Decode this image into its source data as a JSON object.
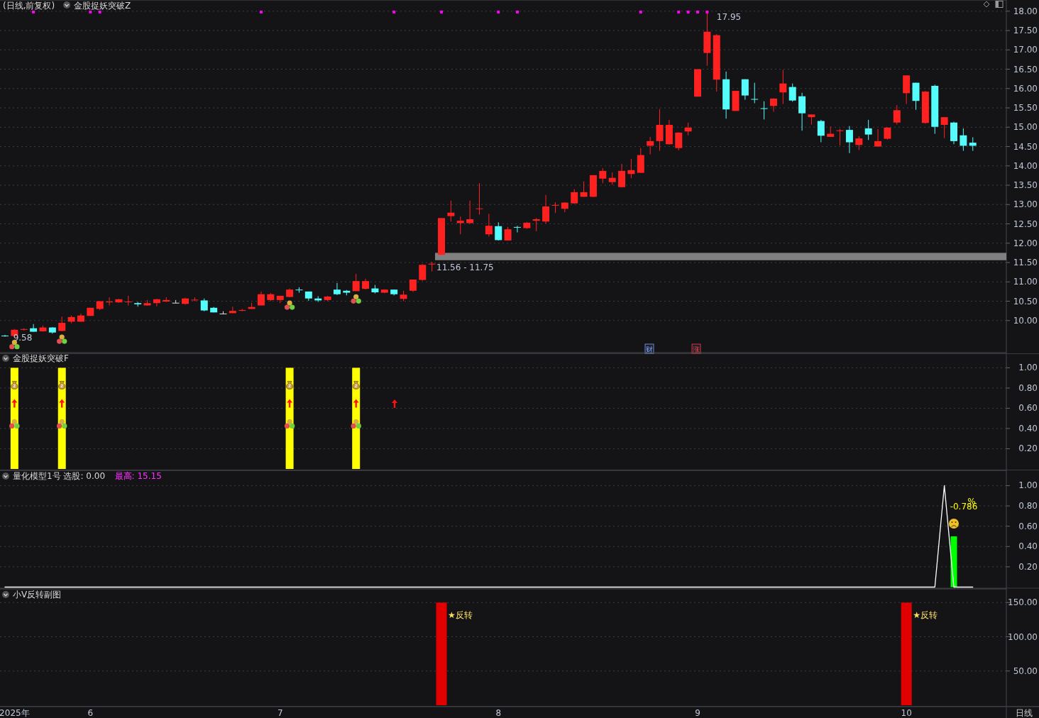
{
  "chart_data": [
    {
      "type": "candlestick",
      "title": "(日线,前复权)",
      "subtitle": "金股捉妖突破Z",
      "categories": [
        null,
        null,
        null,
        null,
        null,
        null,
        null,
        null,
        null,
        null,
        null,
        null,
        null,
        null,
        null,
        null,
        null,
        null,
        null,
        null,
        null,
        null,
        null,
        null,
        null,
        null,
        null,
        null,
        null,
        null,
        null,
        null,
        null,
        null,
        null,
        null,
        null,
        null,
        null,
        null,
        null,
        null,
        null,
        null,
        null,
        null,
        null,
        null,
        null,
        null,
        null,
        null,
        null,
        null,
        null,
        null,
        null,
        null,
        null,
        null,
        null,
        null,
        null,
        null,
        null,
        null,
        null,
        null,
        null,
        null,
        null,
        null,
        null,
        null,
        null,
        null,
        null,
        null,
        null,
        null,
        null,
        null,
        null,
        null,
        null,
        null,
        null,
        null,
        null,
        null,
        null,
        null,
        null,
        null,
        null,
        null,
        null,
        null,
        null,
        null,
        null,
        null,
        null
      ],
      "ohlc": [
        [
          9.61,
          9.63,
          9.58,
          9.6
        ],
        [
          9.6,
          9.78,
          9.58,
          9.76
        ],
        [
          9.76,
          9.8,
          9.74,
          9.78
        ],
        [
          9.8,
          9.91,
          9.71,
          9.71
        ],
        [
          9.72,
          9.87,
          9.71,
          9.82
        ],
        [
          9.82,
          9.83,
          9.66,
          9.69
        ],
        [
          9.73,
          10.1,
          9.72,
          9.94
        ],
        [
          9.97,
          10.13,
          9.93,
          10.09
        ],
        [
          9.97,
          10.18,
          9.97,
          10.13
        ],
        [
          10.12,
          10.33,
          10.12,
          10.33
        ],
        [
          10.3,
          10.5,
          10.27,
          10.5
        ],
        [
          10.47,
          10.6,
          10.39,
          10.49
        ],
        [
          10.47,
          10.56,
          10.46,
          10.55
        ],
        [
          10.48,
          10.64,
          10.39,
          10.49
        ],
        [
          10.45,
          10.48,
          10.36,
          10.42
        ],
        [
          10.39,
          10.53,
          10.39,
          10.45
        ],
        [
          10.45,
          10.56,
          10.37,
          10.55
        ],
        [
          10.49,
          10.6,
          10.48,
          10.53
        ],
        [
          10.46,
          10.53,
          10.45,
          10.46
        ],
        [
          10.43,
          10.59,
          10.41,
          10.57
        ],
        [
          10.53,
          10.6,
          10.5,
          10.54
        ],
        [
          10.52,
          10.57,
          10.24,
          10.26
        ],
        [
          10.33,
          10.35,
          10.21,
          10.21
        ],
        [
          10.18,
          10.24,
          10.17,
          10.18
        ],
        [
          10.19,
          10.36,
          10.19,
          10.25
        ],
        [
          10.25,
          10.3,
          10.24,
          10.27
        ],
        [
          10.3,
          10.46,
          10.3,
          10.35
        ],
        [
          10.39,
          10.75,
          10.39,
          10.68
        ],
        [
          10.53,
          10.71,
          10.5,
          10.68
        ],
        [
          10.53,
          10.64,
          10.45,
          10.64
        ],
        [
          10.61,
          10.83,
          10.6,
          10.8
        ],
        [
          10.8,
          10.86,
          10.72,
          10.79
        ],
        [
          10.75,
          10.75,
          10.51,
          10.57
        ],
        [
          10.57,
          10.63,
          10.48,
          10.52
        ],
        [
          10.53,
          10.64,
          10.5,
          10.62
        ],
        [
          10.8,
          10.97,
          10.66,
          10.68
        ],
        [
          10.77,
          10.79,
          10.65,
          10.72
        ],
        [
          10.76,
          11.21,
          10.76,
          11.02
        ],
        [
          10.82,
          11.08,
          10.8,
          11.02
        ],
        [
          10.83,
          10.92,
          10.7,
          10.73
        ],
        [
          10.72,
          10.81,
          10.71,
          10.8
        ],
        [
          10.8,
          10.8,
          10.65,
          10.68
        ],
        [
          10.56,
          10.77,
          10.5,
          10.67
        ],
        [
          10.77,
          11.06,
          10.74,
          11.06
        ],
        [
          11.05,
          11.46,
          11.03,
          11.44
        ],
        [
          11.45,
          11.52,
          11.27,
          11.47
        ],
        [
          11.7,
          12.65,
          11.7,
          12.65
        ],
        [
          12.7,
          13.1,
          12.56,
          12.79
        ],
        [
          12.52,
          12.69,
          12.23,
          12.58
        ],
        [
          12.52,
          13.1,
          12.5,
          12.62
        ],
        [
          12.89,
          13.55,
          12.74,
          12.9
        ],
        [
          12.23,
          12.76,
          12.17,
          12.45
        ],
        [
          12.44,
          12.54,
          12.07,
          12.08
        ],
        [
          12.07,
          12.42,
          12.07,
          12.36
        ],
        [
          12.42,
          12.45,
          12.28,
          12.41
        ],
        [
          12.39,
          12.55,
          12.37,
          12.53
        ],
        [
          12.58,
          12.65,
          12.31,
          12.62
        ],
        [
          12.56,
          13.25,
          12.51,
          12.95
        ],
        [
          12.97,
          13.06,
          12.78,
          12.99
        ],
        [
          12.89,
          13.06,
          12.8,
          13.05
        ],
        [
          13.03,
          13.4,
          13.02,
          13.32
        ],
        [
          13.2,
          13.6,
          13.2,
          13.32
        ],
        [
          13.2,
          13.76,
          13.19,
          13.76
        ],
        [
          13.67,
          13.94,
          13.55,
          13.87
        ],
        [
          13.58,
          13.83,
          13.51,
          13.69
        ],
        [
          13.45,
          14.05,
          13.44,
          13.87
        ],
        [
          13.79,
          14.18,
          13.68,
          13.89
        ],
        [
          13.82,
          14.46,
          13.82,
          14.28
        ],
        [
          14.52,
          14.75,
          14.3,
          14.64
        ],
        [
          14.64,
          15.47,
          14.39,
          15.06
        ],
        [
          14.56,
          15.19,
          14.55,
          15.06
        ],
        [
          14.46,
          14.87,
          14.4,
          14.86
        ],
        [
          14.89,
          15.12,
          14.79,
          14.99
        ],
        [
          15.79,
          16.5,
          15.79,
          16.5
        ],
        [
          16.92,
          17.95,
          16.59,
          17.47
        ],
        [
          16.23,
          17.41,
          15.92,
          17.38
        ],
        [
          16.24,
          16.44,
          15.22,
          15.46
        ],
        [
          15.42,
          15.94,
          15.42,
          15.94
        ],
        [
          16.24,
          16.24,
          15.71,
          15.82
        ],
        [
          15.73,
          16.15,
          15.62,
          15.72
        ],
        [
          15.49,
          15.67,
          15.2,
          15.48
        ],
        [
          15.55,
          15.75,
          15.4,
          15.74
        ],
        [
          15.9,
          16.48,
          15.6,
          16.13
        ],
        [
          16.04,
          16.13,
          15.66,
          15.69
        ],
        [
          15.8,
          15.89,
          14.91,
          15.36
        ],
        [
          15.26,
          15.33,
          15.07,
          15.33
        ],
        [
          15.16,
          15.19,
          14.61,
          14.78
        ],
        [
          14.75,
          15.02,
          14.75,
          14.83
        ],
        [
          14.9,
          14.96,
          14.53,
          14.92
        ],
        [
          14.93,
          15.03,
          14.33,
          14.61
        ],
        [
          14.54,
          14.77,
          14.41,
          14.71
        ],
        [
          14.97,
          15.19,
          14.67,
          14.81
        ],
        [
          14.5,
          14.95,
          14.5,
          14.64
        ],
        [
          14.7,
          15.0,
          14.68,
          14.99
        ],
        [
          15.12,
          15.57,
          15.07,
          15.44
        ],
        [
          15.88,
          16.34,
          15.6,
          16.34
        ],
        [
          16.15,
          16.15,
          15.45,
          15.68
        ],
        [
          15.11,
          15.94,
          15.09,
          15.92
        ],
        [
          16.07,
          16.1,
          14.83,
          15.01
        ],
        [
          15.06,
          15.26,
          14.72,
          15.26
        ],
        [
          15.12,
          15.14,
          14.56,
          14.64
        ],
        [
          14.79,
          14.97,
          14.39,
          14.52
        ],
        [
          14.6,
          14.74,
          14.39,
          14.52
        ]
      ],
      "colors": [
        "#54fcfc",
        "#ff2020",
        "#ff2020",
        "#54fcfc",
        "#ff2020",
        "#54fcfc",
        "#ff2020",
        "#ff2020",
        "#ff2020",
        "#ff2020",
        "#ff2020",
        "#ff2020",
        "#ff2020",
        "#ff2020",
        "#54fcfc",
        "#ff2020",
        "#ff2020",
        "#ff2020",
        "#dddddd",
        "#ff2020",
        "#ff2020",
        "#54fcfc",
        "#54fcfc",
        "#dddddd",
        "#ff2020",
        "#ff2020",
        "#ff2020",
        "#ff2020",
        "#ff2020",
        "#ff2020",
        "#ff2020",
        "#54fcfc",
        "#54fcfc",
        "#54fcfc",
        "#ff2020",
        "#54fcfc",
        "#54fcfc",
        "#ff2020",
        "#ff2020",
        "#54fcfc",
        "#ff2020",
        "#54fcfc",
        "#ff2020",
        "#ff2020",
        "#ff2020",
        "#ff2020",
        "#ff2020",
        "#ff2020",
        "#ff2020",
        "#ff2020",
        "#ff2020",
        "#ff2020",
        "#54fcfc",
        "#ff2020",
        "#54fcfc",
        "#ff2020",
        "#ff2020",
        "#ff2020",
        "#ff2020",
        "#ff2020",
        "#ff2020",
        "#ff2020",
        "#ff2020",
        "#ff2020",
        "#ff2020",
        "#ff2020",
        "#ff2020",
        "#ff2020",
        "#ff2020",
        "#ff2020",
        "#ff2020",
        "#ff2020",
        "#ff2020",
        "#ff2020",
        "#ff2020",
        "#ff2020",
        "#54fcfc",
        "#ff2020",
        "#54fcfc",
        "#54fcfc",
        "#54fcfc",
        "#ff2020",
        "#ff2020",
        "#54fcfc",
        "#54fcfc",
        "#ff2020",
        "#54fcfc",
        "#ff2020",
        "#ff2020",
        "#54fcfc",
        "#ff2020",
        "#54fcfc",
        "#ff2020",
        "#ff2020",
        "#ff2020",
        "#ff2020",
        "#54fcfc",
        "#ff2020",
        "#54fcfc",
        "#ff2020",
        "#54fcfc",
        "#54fcfc",
        "#54fcfc"
      ],
      "series": [
        {
          "type": "scatter",
          "color": "#ff00ff",
          "values": [
            null,
            null,
            null,
            17.98,
            null,
            null,
            null,
            null,
            null,
            17.98,
            17.98,
            null,
            null,
            null,
            null,
            null,
            null,
            null,
            null,
            null,
            null,
            null,
            null,
            null,
            null,
            null,
            null,
            17.98,
            null,
            null,
            null,
            null,
            null,
            null,
            null,
            null,
            null,
            null,
            null,
            null,
            null,
            17.98,
            null,
            null,
            null,
            null,
            17.98,
            null,
            null,
            null,
            null,
            null,
            17.98,
            null,
            17.98,
            null,
            null,
            null,
            null,
            null,
            null,
            null,
            null,
            null,
            null,
            null,
            null,
            17.98,
            null,
            null,
            null,
            17.98,
            17.98,
            17.98,
            17.98,
            null,
            null,
            null,
            null,
            null,
            null,
            null,
            null,
            null,
            null,
            null,
            null,
            null,
            null,
            null,
            null,
            null,
            null,
            null,
            null,
            null,
            null,
            null,
            null,
            null,
            null,
            null,
            null
          ]
        }
      ],
      "marker": "square",
      "ylim": [
        9.17,
        18.29
      ],
      "yticks": [
        {
          "value": 10,
          "label": "10.00"
        },
        {
          "value": 10.5,
          "label": "10.50"
        },
        {
          "value": 11,
          "label": "11.00"
        },
        {
          "value": 11.5,
          "label": "11.50"
        },
        {
          "value": 12,
          "label": "12.00"
        },
        {
          "value": 12.5,
          "label": "12.50"
        },
        {
          "value": 13,
          "label": "13.00"
        },
        {
          "value": 13.5,
          "label": "13.50"
        },
        {
          "value": 14,
          "label": "14.00"
        },
        {
          "value": 14.5,
          "label": "14.50"
        },
        {
          "value": 15,
          "label": "15.00"
        },
        {
          "value": 15.5,
          "label": "15.50"
        },
        {
          "value": 16,
          "label": "16.00"
        },
        {
          "value": 16.5,
          "label": "16.50"
        },
        {
          "value": 17,
          "label": "17.00"
        },
        {
          "value": 17.5,
          "label": "17.50"
        },
        {
          "value": 18,
          "label": "18.00"
        }
      ],
      "bands": [
        {
          "axis": "y",
          "from": 11.56,
          "to": 11.75,
          "label": "11.56 - 11.75",
          "color": "#808080"
        }
      ],
      "annotations": [
        "17.95",
        "9.58",
        "财",
        "涨"
      ],
      "grid": "y",
      "tick_labels": "y"
    },
    {
      "type": "bar",
      "title": "金股捉妖突破F",
      "categories": [
        null,
        null,
        null,
        null,
        null,
        null,
        null,
        null,
        null,
        null,
        null,
        null,
        null,
        null,
        null,
        null,
        null,
        null,
        null,
        null,
        null,
        null,
        null,
        null,
        null,
        null,
        null,
        null,
        null,
        null,
        null,
        null,
        null,
        null,
        null,
        null,
        null,
        null,
        null,
        null,
        null,
        null,
        null,
        null,
        null,
        null,
        null,
        null,
        null,
        null,
        null,
        null,
        null,
        null,
        null,
        null,
        null,
        null,
        null,
        null,
        null,
        null,
        null,
        null,
        null,
        null,
        null,
        null,
        null,
        null,
        null,
        null,
        null,
        null,
        null,
        null,
        null,
        null,
        null,
        null,
        null,
        null,
        null,
        null,
        null,
        null,
        null,
        null,
        null,
        null,
        null,
        null,
        null,
        null,
        null,
        null,
        null,
        null,
        null,
        null,
        null,
        null,
        null
      ],
      "values": [
        null,
        1,
        null,
        null,
        null,
        null,
        1,
        null,
        null,
        null,
        null,
        null,
        null,
        null,
        null,
        null,
        null,
        null,
        null,
        null,
        null,
        null,
        null,
        null,
        null,
        null,
        null,
        null,
        null,
        null,
        1,
        null,
        null,
        null,
        null,
        null,
        null,
        1,
        null,
        null,
        null,
        null,
        null,
        null,
        null,
        null,
        null,
        null,
        null,
        null,
        null,
        null,
        null,
        null,
        null,
        null,
        null,
        null,
        null,
        null,
        null,
        null,
        null,
        null,
        null,
        null,
        null,
        null,
        null,
        null,
        null,
        null,
        null,
        null,
        null,
        null,
        null,
        null,
        null,
        null,
        null,
        null,
        null,
        null,
        null,
        null,
        null,
        null,
        null,
        null,
        null,
        null,
        null,
        null,
        null,
        null,
        null,
        null,
        null,
        null,
        null,
        null,
        null
      ],
      "color": "#ffff00",
      "ylim": [
        0,
        1.15
      ],
      "yticks": [
        {
          "value": 0.2,
          "label": "0.20"
        },
        {
          "value": 0.4,
          "label": "0.40"
        },
        {
          "value": 0.6,
          "label": "0.60"
        },
        {
          "value": 0.8,
          "label": "0.80"
        },
        {
          "value": 1,
          "label": "1.00"
        }
      ],
      "grid": "y",
      "tick_labels": "y"
    },
    {
      "type": "line",
      "title": "量化模型1号 选股: 0.00",
      "subtitle": "最高: 15.15",
      "categories": [
        null,
        null,
        null,
        null,
        null,
        null,
        null,
        null,
        null,
        null,
        null,
        null,
        null,
        null,
        null,
        null,
        null,
        null,
        null,
        null,
        null,
        null,
        null,
        null,
        null,
        null,
        null,
        null,
        null,
        null,
        null,
        null,
        null,
        null,
        null,
        null,
        null,
        null,
        null,
        null,
        null,
        null,
        null,
        null,
        null,
        null,
        null,
        null,
        null,
        null,
        null,
        null,
        null,
        null,
        null,
        null,
        null,
        null,
        null,
        null,
        null,
        null,
        null,
        null,
        null,
        null,
        null,
        null,
        null,
        null,
        null,
        null,
        null,
        null,
        null,
        null,
        null,
        null,
        null,
        null,
        null,
        null,
        null,
        null,
        null,
        null,
        null,
        null,
        null,
        null,
        null,
        null,
        null,
        null,
        null,
        null,
        null,
        null,
        null,
        null,
        null,
        null,
        null
      ],
      "series": [
        {
          "type": "line",
          "color": "#ffffff",
          "values": [
            0,
            0,
            0,
            0,
            0,
            0,
            0,
            0,
            0,
            0,
            0,
            0,
            0,
            0,
            0,
            0,
            0,
            0,
            0,
            0,
            0,
            0,
            0,
            0,
            0,
            0,
            0,
            0,
            0,
            0,
            0,
            0,
            0,
            0,
            0,
            0,
            0,
            0,
            0,
            0,
            0,
            0,
            0,
            0,
            0,
            0,
            0,
            0,
            0,
            0,
            0,
            0,
            0,
            0,
            0,
            0,
            0,
            0,
            0,
            0,
            0,
            0,
            0,
            0,
            0,
            0,
            0,
            0,
            0,
            0,
            0,
            0,
            0,
            0,
            0,
            0,
            0,
            0,
            0,
            0,
            0,
            0,
            0,
            0,
            0,
            0,
            0,
            0,
            0,
            0,
            0,
            0,
            0,
            0,
            0,
            0,
            0,
            0,
            0,
            1,
            0,
            0,
            0
          ]
        },
        {
          "type": "bar",
          "color": "#00ff00",
          "values": [
            null,
            null,
            null,
            null,
            null,
            null,
            null,
            null,
            null,
            null,
            null,
            null,
            null,
            null,
            null,
            null,
            null,
            null,
            null,
            null,
            null,
            null,
            null,
            null,
            null,
            null,
            null,
            null,
            null,
            null,
            null,
            null,
            null,
            null,
            null,
            null,
            null,
            null,
            null,
            null,
            null,
            null,
            null,
            null,
            null,
            null,
            null,
            null,
            null,
            null,
            null,
            null,
            null,
            null,
            null,
            null,
            null,
            null,
            null,
            null,
            null,
            null,
            null,
            null,
            null,
            null,
            null,
            null,
            null,
            null,
            null,
            null,
            null,
            null,
            null,
            null,
            null,
            null,
            null,
            null,
            null,
            null,
            null,
            null,
            null,
            null,
            null,
            null,
            null,
            null,
            null,
            null,
            null,
            null,
            null,
            null,
            null,
            null,
            null,
            null,
            0.5,
            null,
            null
          ]
        }
      ],
      "ylim": [
        0,
        1.15
      ],
      "yticks": [
        {
          "value": 0.2,
          "label": "0.20"
        },
        {
          "value": 0.4,
          "label": "0.40"
        },
        {
          "value": 0.6,
          "label": "0.60"
        },
        {
          "value": 0.8,
          "label": "0.80"
        },
        {
          "value": 1,
          "label": "1.00"
        }
      ],
      "annotations": [
        "-0.786",
        "%"
      ],
      "grid": "y",
      "tick_labels": "y"
    },
    {
      "type": "bar",
      "title": "小V反转副图",
      "categories": [
        null,
        "2025年",
        null,
        null,
        null,
        null,
        null,
        null,
        null,
        "6",
        null,
        null,
        null,
        null,
        null,
        null,
        null,
        null,
        null,
        null,
        null,
        null,
        null,
        null,
        null,
        null,
        null,
        null,
        null,
        "7",
        null,
        null,
        null,
        null,
        null,
        null,
        null,
        null,
        null,
        null,
        null,
        null,
        null,
        null,
        null,
        null,
        null,
        null,
        null,
        null,
        null,
        null,
        "8",
        null,
        null,
        null,
        null,
        null,
        null,
        null,
        null,
        null,
        null,
        null,
        null,
        null,
        null,
        null,
        null,
        null,
        null,
        null,
        null,
        "9",
        null,
        null,
        null,
        null,
        null,
        null,
        null,
        null,
        null,
        null,
        null,
        null,
        null,
        null,
        null,
        null,
        null,
        null,
        null,
        null,
        null,
        "10",
        null,
        null,
        null,
        null,
        null,
        null,
        null
      ],
      "values": [
        null,
        null,
        null,
        null,
        null,
        null,
        null,
        null,
        null,
        null,
        null,
        null,
        null,
        null,
        null,
        null,
        null,
        null,
        null,
        null,
        null,
        null,
        null,
        null,
        null,
        null,
        null,
        null,
        null,
        null,
        null,
        null,
        null,
        null,
        null,
        null,
        null,
        null,
        null,
        null,
        null,
        null,
        null,
        null,
        null,
        null,
        150,
        null,
        null,
        null,
        null,
        null,
        null,
        null,
        null,
        null,
        null,
        null,
        null,
        null,
        null,
        null,
        null,
        null,
        null,
        null,
        null,
        null,
        null,
        null,
        null,
        null,
        null,
        null,
        null,
        null,
        null,
        null,
        null,
        null,
        null,
        null,
        null,
        null,
        null,
        null,
        null,
        null,
        null,
        null,
        null,
        null,
        null,
        null,
        null,
        150,
        null,
        null,
        null,
        null,
        null,
        null,
        null
      ],
      "color": "#e00000",
      "ylim": [
        0,
        170
      ],
      "yticks": [
        {
          "value": 50,
          "label": "50.00"
        },
        {
          "value": 100,
          "label": "100.00"
        },
        {
          "value": 150,
          "label": "150.00"
        }
      ],
      "annotations": [
        "★反转",
        "★反转",
        "日线"
      ],
      "grid": "y"
    }
  ]
}
